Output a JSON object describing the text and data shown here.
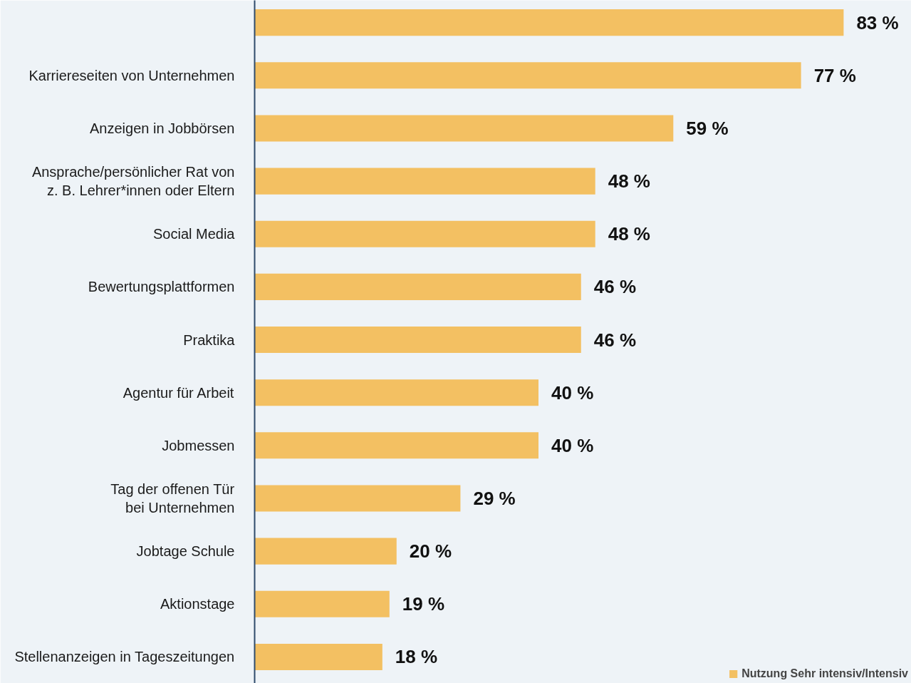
{
  "chart_data": {
    "type": "bar",
    "orientation": "horizontal",
    "categories": [
      null,
      "Karriereseiten von Unternehmen",
      "Anzeigen in Jobbörsen",
      "Ansprache/persönlicher Rat von\nz. B. Lehrer*innen oder Eltern",
      "Social Media",
      "Bewertungsplattformen",
      "Praktika",
      "Agentur für Arbeit",
      "Jobmessen",
      "Tag der offenen Tür\nbei Unternehmen",
      "Jobtage Schule",
      "Aktionstage",
      "Stellenanzeigen in Tageszeitungen"
    ],
    "series": [
      {
        "name": "Nutzung Sehr intensiv/Intensiv",
        "color": "#f3c062",
        "values": [
          83,
          77,
          59,
          48,
          48,
          46,
          46,
          40,
          40,
          29,
          20,
          19,
          18
        ],
        "value_labels": [
          "83 %",
          "77 %",
          "59 %",
          "48 %",
          "48 %",
          "46 %",
          "46 %",
          "40 %",
          "40 %",
          "29 %",
          "20 %",
          "19 %",
          "18 %"
        ]
      }
    ],
    "legend": "bottom right",
    "grid": false
  }
}
